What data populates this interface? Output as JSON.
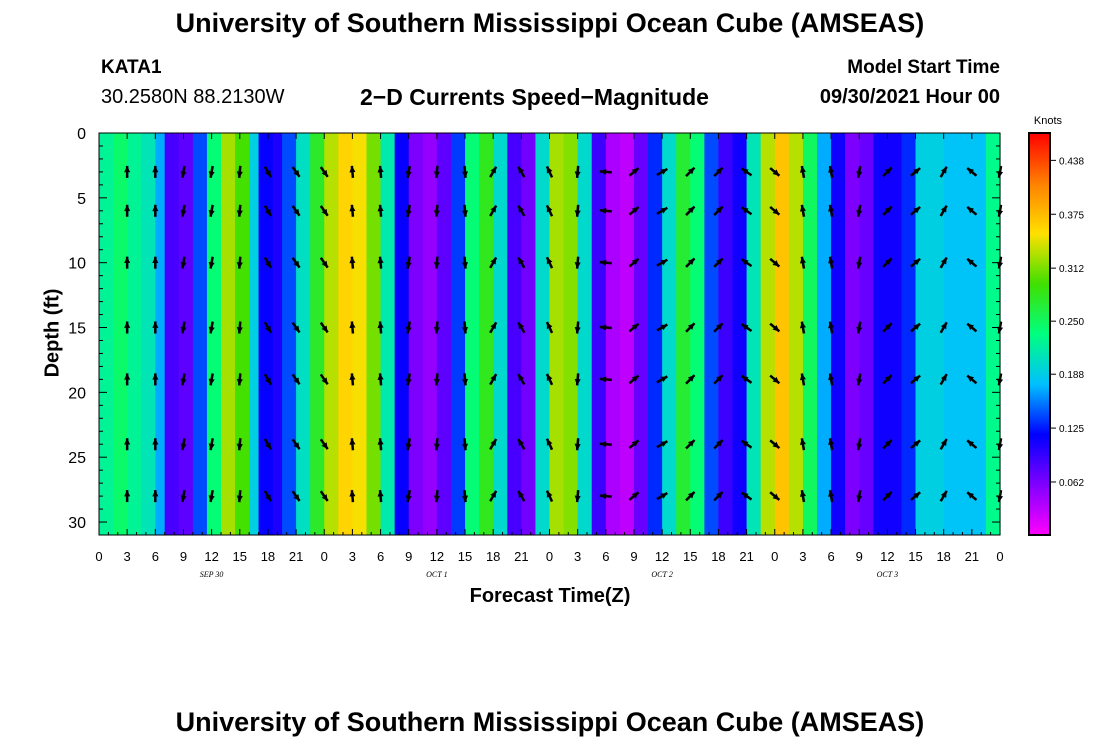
{
  "page": {
    "top_title": "University of Southern Mississippi Ocean Cube (AMSEAS)",
    "bottom_title": "University of Southern Mississippi Ocean Cube (AMSEAS)",
    "station": "KATA1",
    "coords": "30.2580N  88.2130W",
    "chart_title": "2−D Currents Speed−Magnitude",
    "start_label": "Model Start Time",
    "start_value": "09/30/2021 Hour 00"
  },
  "colors": {
    "scale": [
      "#ff00ff",
      "#8000ff",
      "#0000ff",
      "#00c0ff",
      "#00ff80",
      "#40e000",
      "#ffe000",
      "#ff8000",
      "#ff0000"
    ],
    "arrow": "#000000",
    "axis": "#000000"
  },
  "chart_data": {
    "type": "heatmap",
    "title": "2−D Currents Speed−Magnitude",
    "xlabel": "Forecast Time(Z)",
    "ylabel": "Depth (ft)",
    "x_range": [
      0,
      96
    ],
    "y_range": [
      0,
      31
    ],
    "x_ticks": [
      0,
      3,
      6,
      9,
      12,
      15,
      18,
      21,
      24,
      27,
      30,
      33,
      36,
      39,
      42,
      45,
      48,
      51,
      54,
      57,
      60,
      63,
      66,
      69,
      72,
      75,
      78,
      81,
      84,
      87,
      90,
      93,
      96
    ],
    "x_tick_labels": [
      "0",
      "3",
      "6",
      "9",
      "12",
      "15",
      "18",
      "21",
      "0",
      "3",
      "6",
      "9",
      "12",
      "15",
      "18",
      "21",
      "0",
      "3",
      "6",
      "9",
      "12",
      "15",
      "18",
      "21",
      "0",
      "3",
      "6",
      "9",
      "12",
      "15",
      "18",
      "21",
      "0"
    ],
    "y_ticks": [
      0,
      5,
      10,
      15,
      20,
      25,
      30
    ],
    "y_tick_labels": [
      "0",
      "5",
      "10",
      "15",
      "20",
      "25",
      "30"
    ],
    "date_labels": [
      {
        "x": 12,
        "text": "SEP 30"
      },
      {
        "x": 36,
        "text": "OCT 1"
      },
      {
        "x": 60,
        "text": "OCT 2"
      },
      {
        "x": 84,
        "text": "OCT 3"
      }
    ],
    "colorbar": {
      "unit": "Knots",
      "min": 0.0,
      "max": 0.47,
      "ticks": [
        0.062,
        0.125,
        0.188,
        0.25,
        0.312,
        0.375,
        0.438
      ],
      "tick_labels": [
        "0.062",
        "0.125",
        "0.188",
        "0.250",
        "0.312",
        "0.375",
        "0.438"
      ]
    },
    "bands": [
      {
        "x": 0,
        "v": 0.21
      },
      {
        "x": 1.5,
        "v": 0.24
      },
      {
        "x": 3,
        "v": 0.25
      },
      {
        "x": 4.5,
        "v": 0.2
      },
      {
        "x": 6,
        "v": 0.22
      },
      {
        "x": 7,
        "v": 0.12
      },
      {
        "x": 8.5,
        "v": 0.05
      },
      {
        "x": 10,
        "v": 0.1
      },
      {
        "x": 11.5,
        "v": 0.18
      },
      {
        "x": 13,
        "v": 0.3
      },
      {
        "x": 14.5,
        "v": 0.35
      },
      {
        "x": 16,
        "v": 0.24
      },
      {
        "x": 17,
        "v": 0.14
      },
      {
        "x": 18.5,
        "v": 0.09
      },
      {
        "x": 19.5,
        "v": 0.12
      },
      {
        "x": 21,
        "v": 0.16
      },
      {
        "x": 22.5,
        "v": 0.25
      },
      {
        "x": 24,
        "v": 0.3
      },
      {
        "x": 25.5,
        "v": 0.36
      },
      {
        "x": 27,
        "v": 0.36
      },
      {
        "x": 28.5,
        "v": 0.34
      },
      {
        "x": 30,
        "v": 0.28
      },
      {
        "x": 31.5,
        "v": 0.15
      },
      {
        "x": 33,
        "v": 0.08
      },
      {
        "x": 34.5,
        "v": 0.04
      },
      {
        "x": 36,
        "v": 0.06
      },
      {
        "x": 37.5,
        "v": 0.09
      },
      {
        "x": 39,
        "v": 0.18
      },
      {
        "x": 40.5,
        "v": 0.3
      },
      {
        "x": 42,
        "v": 0.26
      },
      {
        "x": 43.5,
        "v": 0.14
      },
      {
        "x": 45,
        "v": 0.03
      },
      {
        "x": 46.5,
        "v": 0.1
      },
      {
        "x": 48,
        "v": 0.3
      },
      {
        "x": 49.5,
        "v": 0.35
      },
      {
        "x": 51,
        "v": 0.28
      },
      {
        "x": 52.5,
        "v": 0.12
      },
      {
        "x": 54,
        "v": 0.06
      },
      {
        "x": 55.5,
        "v": 0.02
      },
      {
        "x": 57,
        "v": 0.04
      },
      {
        "x": 58.5,
        "v": 0.1
      },
      {
        "x": 60,
        "v": 0.16
      },
      {
        "x": 61.5,
        "v": 0.24
      },
      {
        "x": 63,
        "v": 0.3
      },
      {
        "x": 64.5,
        "v": 0.18
      },
      {
        "x": 66,
        "v": 0.1
      },
      {
        "x": 67.5,
        "v": 0.08
      },
      {
        "x": 69,
        "v": 0.14
      },
      {
        "x": 70.5,
        "v": 0.28
      },
      {
        "x": 72,
        "v": 0.38
      },
      {
        "x": 73.5,
        "v": 0.36
      },
      {
        "x": 75,
        "v": 0.3
      },
      {
        "x": 76.5,
        "v": 0.2
      },
      {
        "x": 78,
        "v": 0.14
      },
      {
        "x": 79.5,
        "v": 0.08
      },
      {
        "x": 81,
        "v": 0.04
      },
      {
        "x": 82.5,
        "v": 0.1
      },
      {
        "x": 84,
        "v": 0.12
      },
      {
        "x": 85.5,
        "v": 0.1
      },
      {
        "x": 87,
        "v": 0.16
      },
      {
        "x": 88.5,
        "v": 0.22
      },
      {
        "x": 90,
        "v": 0.16
      },
      {
        "x": 91.5,
        "v": 0.2
      },
      {
        "x": 93,
        "v": 0.16
      },
      {
        "x": 94.5,
        "v": 0.2
      },
      {
        "x": 96,
        "v": 0.26
      }
    ],
    "arrow_x_hours": [
      3,
      6,
      9,
      12,
      15,
      18,
      21,
      24,
      27,
      30,
      33,
      36,
      39,
      42,
      45,
      48,
      51,
      54,
      57,
      60,
      63,
      66,
      69,
      72,
      75,
      78,
      81,
      84,
      87,
      90,
      93,
      96
    ],
    "arrow_depths": [
      3,
      6,
      10,
      15,
      19,
      24,
      28
    ],
    "arrow_angles_deg": [
      90,
      90,
      -100,
      -100,
      -95,
      -60,
      -55,
      -55,
      95,
      95,
      -100,
      -95,
      -85,
      60,
      120,
      115,
      -95,
      175,
      40,
      30,
      45,
      45,
      145,
      -40,
      100,
      100,
      -100,
      45,
      40,
      60,
      140,
      -100
    ],
    "arrow_length": 0.4
  }
}
